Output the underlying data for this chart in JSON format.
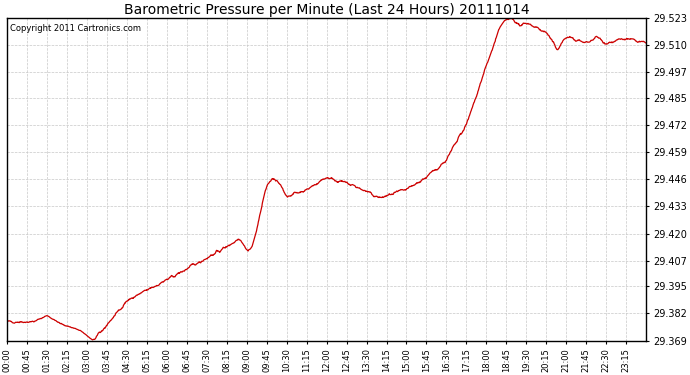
{
  "title": "Barometric Pressure per Minute (Last 24 Hours) 20111014",
  "copyright": "Copyright 2011 Cartronics.com",
  "line_color": "#cc0000",
  "bg_color": "#ffffff",
  "plot_bg_color": "#ffffff",
  "grid_color": "#c8c8c8",
  "title_color": "#000000",
  "text_color": "#000000",
  "yticks": [
    29.369,
    29.382,
    29.395,
    29.407,
    29.42,
    29.433,
    29.446,
    29.459,
    29.472,
    29.485,
    29.497,
    29.51,
    29.523
  ],
  "ylim": [
    29.369,
    29.523
  ],
  "xtick_labels": [
    "00:00",
    "00:45",
    "01:30",
    "02:15",
    "03:00",
    "03:45",
    "04:30",
    "05:15",
    "06:00",
    "06:45",
    "07:30",
    "08:15",
    "09:00",
    "09:45",
    "10:30",
    "11:15",
    "12:00",
    "12:45",
    "13:30",
    "14:15",
    "15:00",
    "15:45",
    "16:30",
    "17:15",
    "18:00",
    "18:45",
    "19:30",
    "20:15",
    "21:00",
    "21:45",
    "22:30",
    "23:15"
  ],
  "num_minutes": 1440
}
